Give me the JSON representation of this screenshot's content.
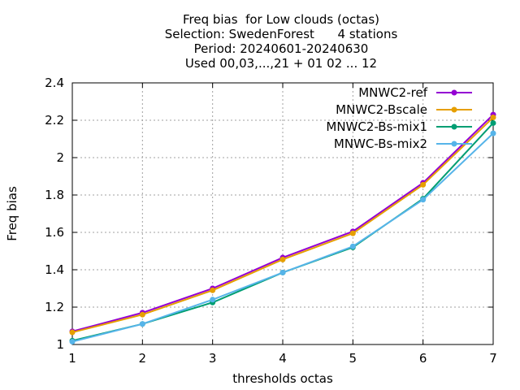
{
  "chart_data": {
    "type": "line",
    "title_lines": [
      "Freq bias  for Low clouds (octas)",
      "Selection: SwedenForest      4 stations",
      "Period: 20240601-20240630",
      "Used 00,03,...,21 + 01 02 ... 12"
    ],
    "xlabel": "thresholds octas",
    "ylabel": "Freq bias",
    "x": [
      1,
      2,
      3,
      4,
      5,
      6,
      7
    ],
    "xlim": [
      1,
      7
    ],
    "ylim": [
      1,
      2.4
    ],
    "xticks": [
      "1",
      "2",
      "3",
      "4",
      "5",
      "6",
      "7"
    ],
    "yticks": [
      "1",
      "1.2",
      "1.4",
      "1.6",
      "1.8",
      "2",
      "2.2",
      "2.4"
    ],
    "grid": true,
    "legend_position": "top-right",
    "series": [
      {
        "name": "MNWC2-ref",
        "color": "#9400d3",
        "values": [
          1.07,
          1.17,
          1.3,
          1.465,
          1.605,
          1.865,
          2.23
        ]
      },
      {
        "name": "MNWC2-Bscale",
        "color": "#e69f00",
        "values": [
          1.065,
          1.16,
          1.29,
          1.455,
          1.595,
          1.855,
          2.215
        ]
      },
      {
        "name": "MNWC2-Bs-mix1",
        "color": "#009e73",
        "values": [
          1.02,
          1.11,
          1.225,
          1.385,
          1.52,
          1.78,
          2.185
        ]
      },
      {
        "name": "MNWC-Bs-mix2",
        "color": "#56b4e9",
        "values": [
          1.015,
          1.11,
          1.24,
          1.385,
          1.525,
          1.775,
          2.13
        ]
      }
    ]
  }
}
